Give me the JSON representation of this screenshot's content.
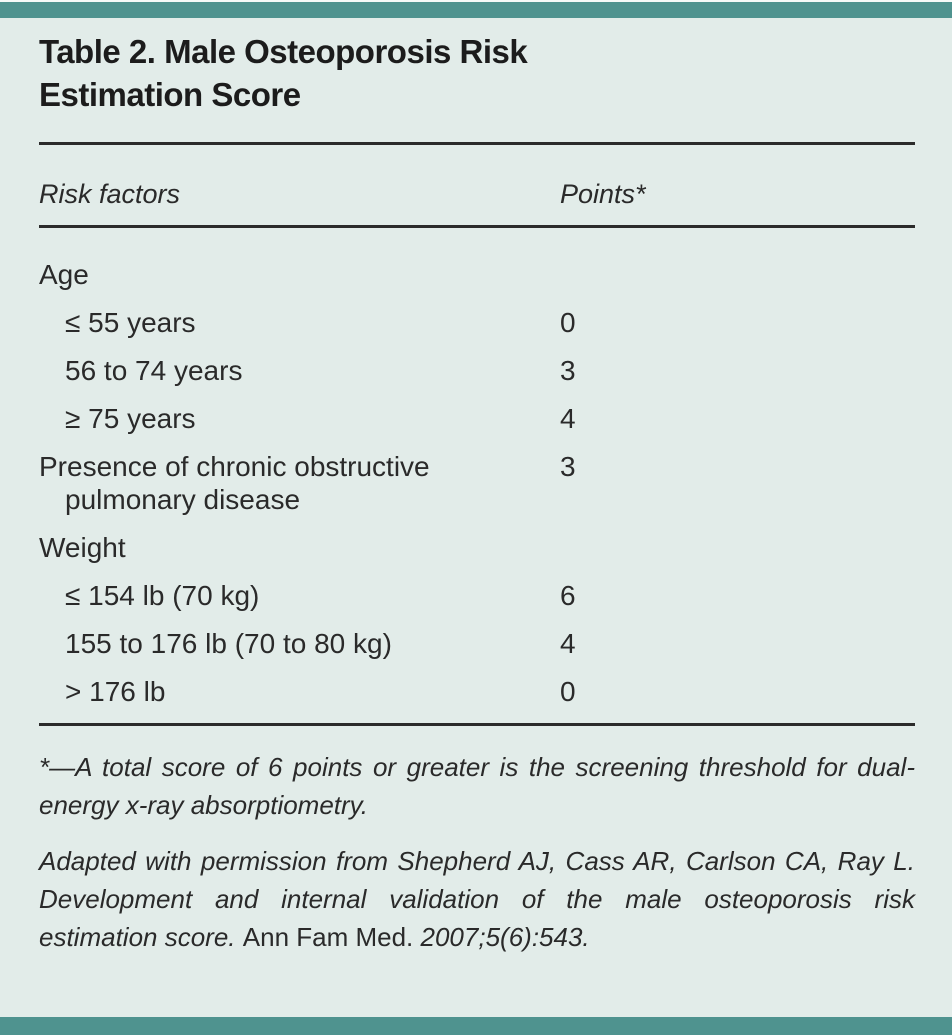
{
  "page": {
    "accent_color": "#4f938f",
    "background_color": "#e2ece9",
    "text_color": "#272727"
  },
  "table": {
    "title": "Table 2. Male Osteoporosis Risk Estimation Score",
    "columns": {
      "risk_factors": "Risk factors",
      "points": "Points*"
    },
    "rows": [
      {
        "label": "Age",
        "points": ""
      },
      {
        "label": "≤ 55 years",
        "points": "0"
      },
      {
        "label": "56 to 74 years",
        "points": "3"
      },
      {
        "label": "≥ 75 years",
        "points": "4"
      },
      {
        "label": "Presence of chronic obstructive pulmonary disease",
        "points": "3"
      },
      {
        "label": "Weight",
        "points": ""
      },
      {
        "label": "≤ 154 lb (70 kg)",
        "points": "6"
      },
      {
        "label": "155 to 176 lb (70 to 80 kg)",
        "points": "4"
      },
      {
        "label": "> 176 lb",
        "points": "0"
      }
    ]
  },
  "footnotes": {
    "threshold_note": "*—A total score of 6 points or greater is the screening threshold for dual-energy x-ray absorptiometry.",
    "citation_part_1": "Adapted with permission from Shepherd AJ, Cass AR, Carlson CA, Ray L. Development and internal validation of the male osteoporosis risk estimation score.",
    "citation_journal": "Ann Fam Med.",
    "citation_part_2": "2007;5(6):543."
  }
}
